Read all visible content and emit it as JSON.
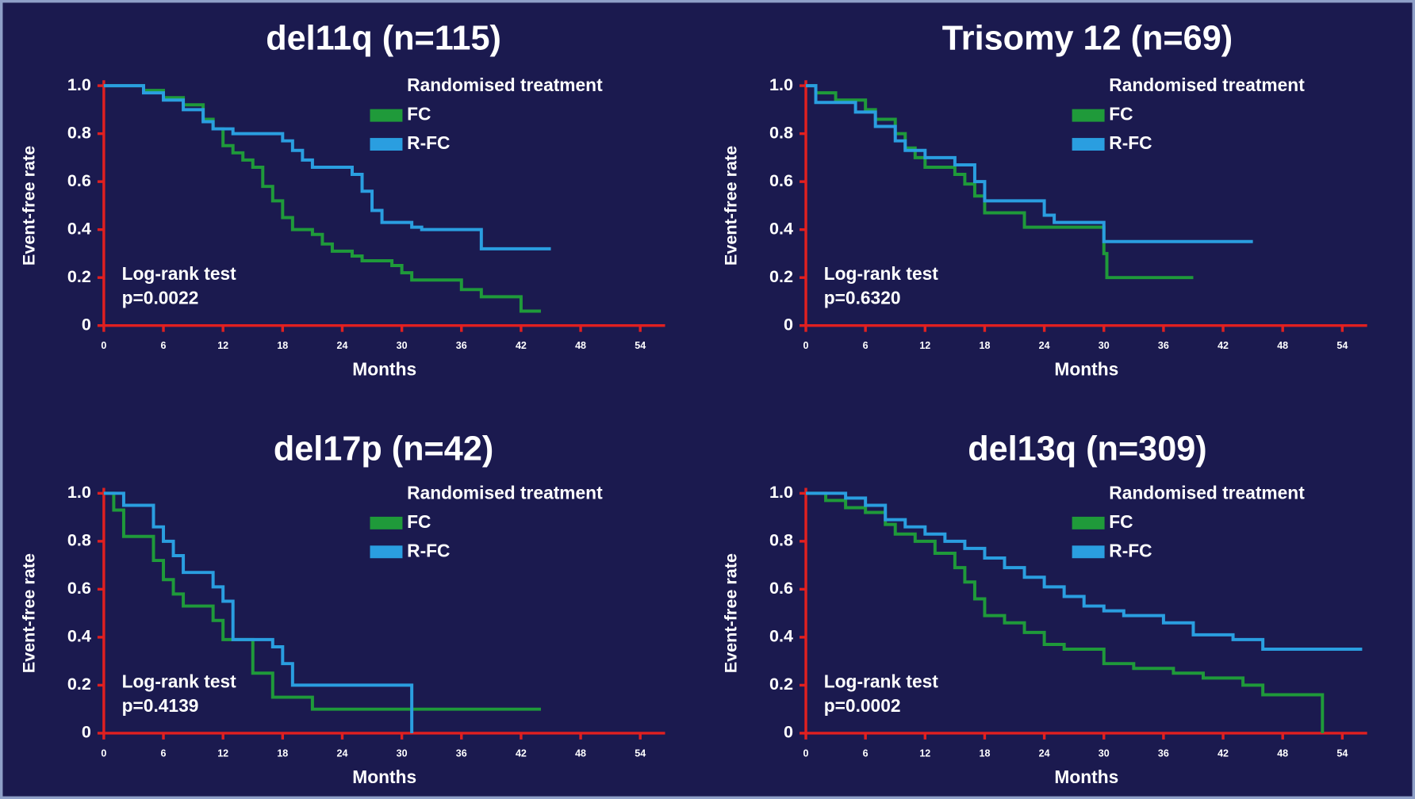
{
  "chart_data": [
    {
      "type": "line",
      "drawstyle": "steps-post",
      "title": "del11q (n=115)",
      "xlabel": "Months",
      "ylabel": "Event-free rate",
      "legend_title": "Randomised treatment",
      "annotations": [
        "Log-rank test",
        "p=0.0022"
      ],
      "xlim": [
        0,
        56.5
      ],
      "xticks": [
        0,
        6,
        12,
        18,
        24,
        30,
        36,
        42,
        48,
        54
      ],
      "ylim": [
        0,
        1
      ],
      "yticks": [
        0,
        0.2,
        0.4,
        0.6,
        0.8,
        {
          "value": 1,
          "label": "1.0"
        }
      ],
      "series": [
        {
          "name": "FC",
          "color": "#1f9a3a",
          "x": [
            0,
            4,
            6,
            8,
            10,
            11,
            12,
            13,
            14,
            15,
            16,
            17,
            18,
            19,
            21,
            22,
            23,
            25,
            26,
            29,
            30,
            31,
            36,
            38,
            42,
            44
          ],
          "values": [
            1,
            0.98,
            0.95,
            0.92,
            0.86,
            0.82,
            0.75,
            0.72,
            0.69,
            0.66,
            0.58,
            0.52,
            0.45,
            0.4,
            0.38,
            0.34,
            0.31,
            0.29,
            0.27,
            0.25,
            0.22,
            0.19,
            0.15,
            0.12,
            0.06,
            0.06
          ]
        },
        {
          "name": "R-FC",
          "color": "#2a9ee0",
          "x": [
            0,
            4,
            6,
            8,
            10,
            11,
            13,
            18,
            19,
            20,
            21,
            25,
            26,
            27,
            28,
            31,
            32,
            38,
            45
          ],
          "values": [
            1,
            0.97,
            0.94,
            0.9,
            0.85,
            0.82,
            0.8,
            0.77,
            0.73,
            0.69,
            0.66,
            0.63,
            0.56,
            0.48,
            0.43,
            0.41,
            0.4,
            0.32,
            0.32
          ]
        }
      ]
    },
    {
      "type": "line",
      "drawstyle": "steps-post",
      "title": "Trisomy 12 (n=69)",
      "xlabel": "Months",
      "ylabel": "Event-free rate",
      "legend_title": "Randomised treatment",
      "annotations": [
        "Log-rank test",
        "p=0.6320"
      ],
      "xlim": [
        0,
        56.5
      ],
      "xticks": [
        0,
        6,
        12,
        18,
        24,
        30,
        36,
        42,
        48,
        54
      ],
      "ylim": [
        0,
        1
      ],
      "yticks": [
        0,
        0.2,
        0.4,
        0.6,
        0.8,
        {
          "value": 1,
          "label": "1.0"
        }
      ],
      "series": [
        {
          "name": "FC",
          "color": "#1f9a3a",
          "x": [
            0,
            1,
            3,
            6,
            7,
            9,
            10,
            11,
            12,
            15,
            16,
            17,
            18,
            22,
            30,
            30.3,
            39
          ],
          "values": [
            1,
            0.97,
            0.94,
            0.9,
            0.86,
            0.8,
            0.74,
            0.7,
            0.66,
            0.63,
            0.59,
            0.54,
            0.47,
            0.41,
            0.3,
            0.2,
            0.2
          ]
        },
        {
          "name": "R-FC",
          "color": "#2a9ee0",
          "x": [
            0,
            1,
            5,
            7,
            9,
            10,
            12,
            15,
            17,
            18,
            24,
            25,
            30,
            45
          ],
          "values": [
            1,
            0.93,
            0.89,
            0.83,
            0.77,
            0.73,
            0.7,
            0.67,
            0.6,
            0.52,
            0.46,
            0.43,
            0.35,
            0.35
          ]
        }
      ]
    },
    {
      "type": "line",
      "drawstyle": "steps-post",
      "title": "del17p (n=42)",
      "xlabel": "Months",
      "ylabel": "Event-free rate",
      "legend_title": "Randomised treatment",
      "annotations": [
        "Log-rank test",
        "p=0.4139"
      ],
      "xlim": [
        0,
        56.5
      ],
      "xticks": [
        0,
        6,
        12,
        18,
        24,
        30,
        36,
        42,
        48,
        54
      ],
      "ylim": [
        0,
        1
      ],
      "yticks": [
        0,
        0.2,
        0.4,
        0.6,
        0.8,
        {
          "value": 1,
          "label": "1.0"
        }
      ],
      "series": [
        {
          "name": "FC",
          "color": "#1f9a3a",
          "x": [
            0,
            1,
            2,
            5,
            6,
            7,
            8,
            11,
            12,
            15,
            17,
            21,
            44
          ],
          "values": [
            1,
            0.93,
            0.82,
            0.72,
            0.64,
            0.58,
            0.53,
            0.47,
            0.39,
            0.25,
            0.15,
            0.1,
            0.1
          ]
        },
        {
          "name": "R-FC",
          "color": "#2a9ee0",
          "x": [
            0,
            2,
            5,
            6,
            7,
            8,
            11,
            12,
            13,
            17,
            18,
            19,
            31
          ],
          "values": [
            1,
            0.95,
            0.86,
            0.8,
            0.74,
            0.67,
            0.61,
            0.55,
            0.39,
            0.36,
            0.29,
            0.2,
            0
          ]
        }
      ]
    },
    {
      "type": "line",
      "drawstyle": "steps-post",
      "title": "del13q (n=309)",
      "xlabel": "Months",
      "ylabel": "Event-free rate",
      "legend_title": "Randomised treatment",
      "annotations": [
        "Log-rank test",
        "p=0.0002"
      ],
      "xlim": [
        0,
        56.5
      ],
      "xticks": [
        0,
        6,
        12,
        18,
        24,
        30,
        36,
        42,
        48,
        54
      ],
      "ylim": [
        0,
        1
      ],
      "yticks": [
        0,
        0.2,
        0.4,
        0.6,
        0.8,
        {
          "value": 1,
          "label": "1.0"
        }
      ],
      "series": [
        {
          "name": "FC",
          "color": "#1f9a3a",
          "x": [
            0,
            2,
            4,
            6,
            8,
            9,
            11,
            13,
            15,
            16,
            17,
            18,
            20,
            22,
            24,
            26,
            30,
            33,
            37,
            40,
            44,
            46,
            52
          ],
          "values": [
            1,
            0.97,
            0.94,
            0.92,
            0.87,
            0.83,
            0.8,
            0.75,
            0.69,
            0.63,
            0.56,
            0.49,
            0.46,
            0.42,
            0.37,
            0.35,
            0.29,
            0.27,
            0.25,
            0.23,
            0.2,
            0.16,
            0
          ]
        },
        {
          "name": "R-FC",
          "color": "#2a9ee0",
          "x": [
            0,
            4,
            6,
            8,
            10,
            12,
            14,
            16,
            18,
            20,
            22,
            24,
            26,
            28,
            30,
            32,
            36,
            39,
            43,
            46,
            56
          ],
          "values": [
            1,
            0.98,
            0.95,
            0.89,
            0.86,
            0.83,
            0.8,
            0.77,
            0.73,
            0.69,
            0.65,
            0.61,
            0.57,
            0.53,
            0.51,
            0.49,
            0.46,
            0.41,
            0.39,
            0.35,
            0.35
          ]
        }
      ]
    }
  ]
}
